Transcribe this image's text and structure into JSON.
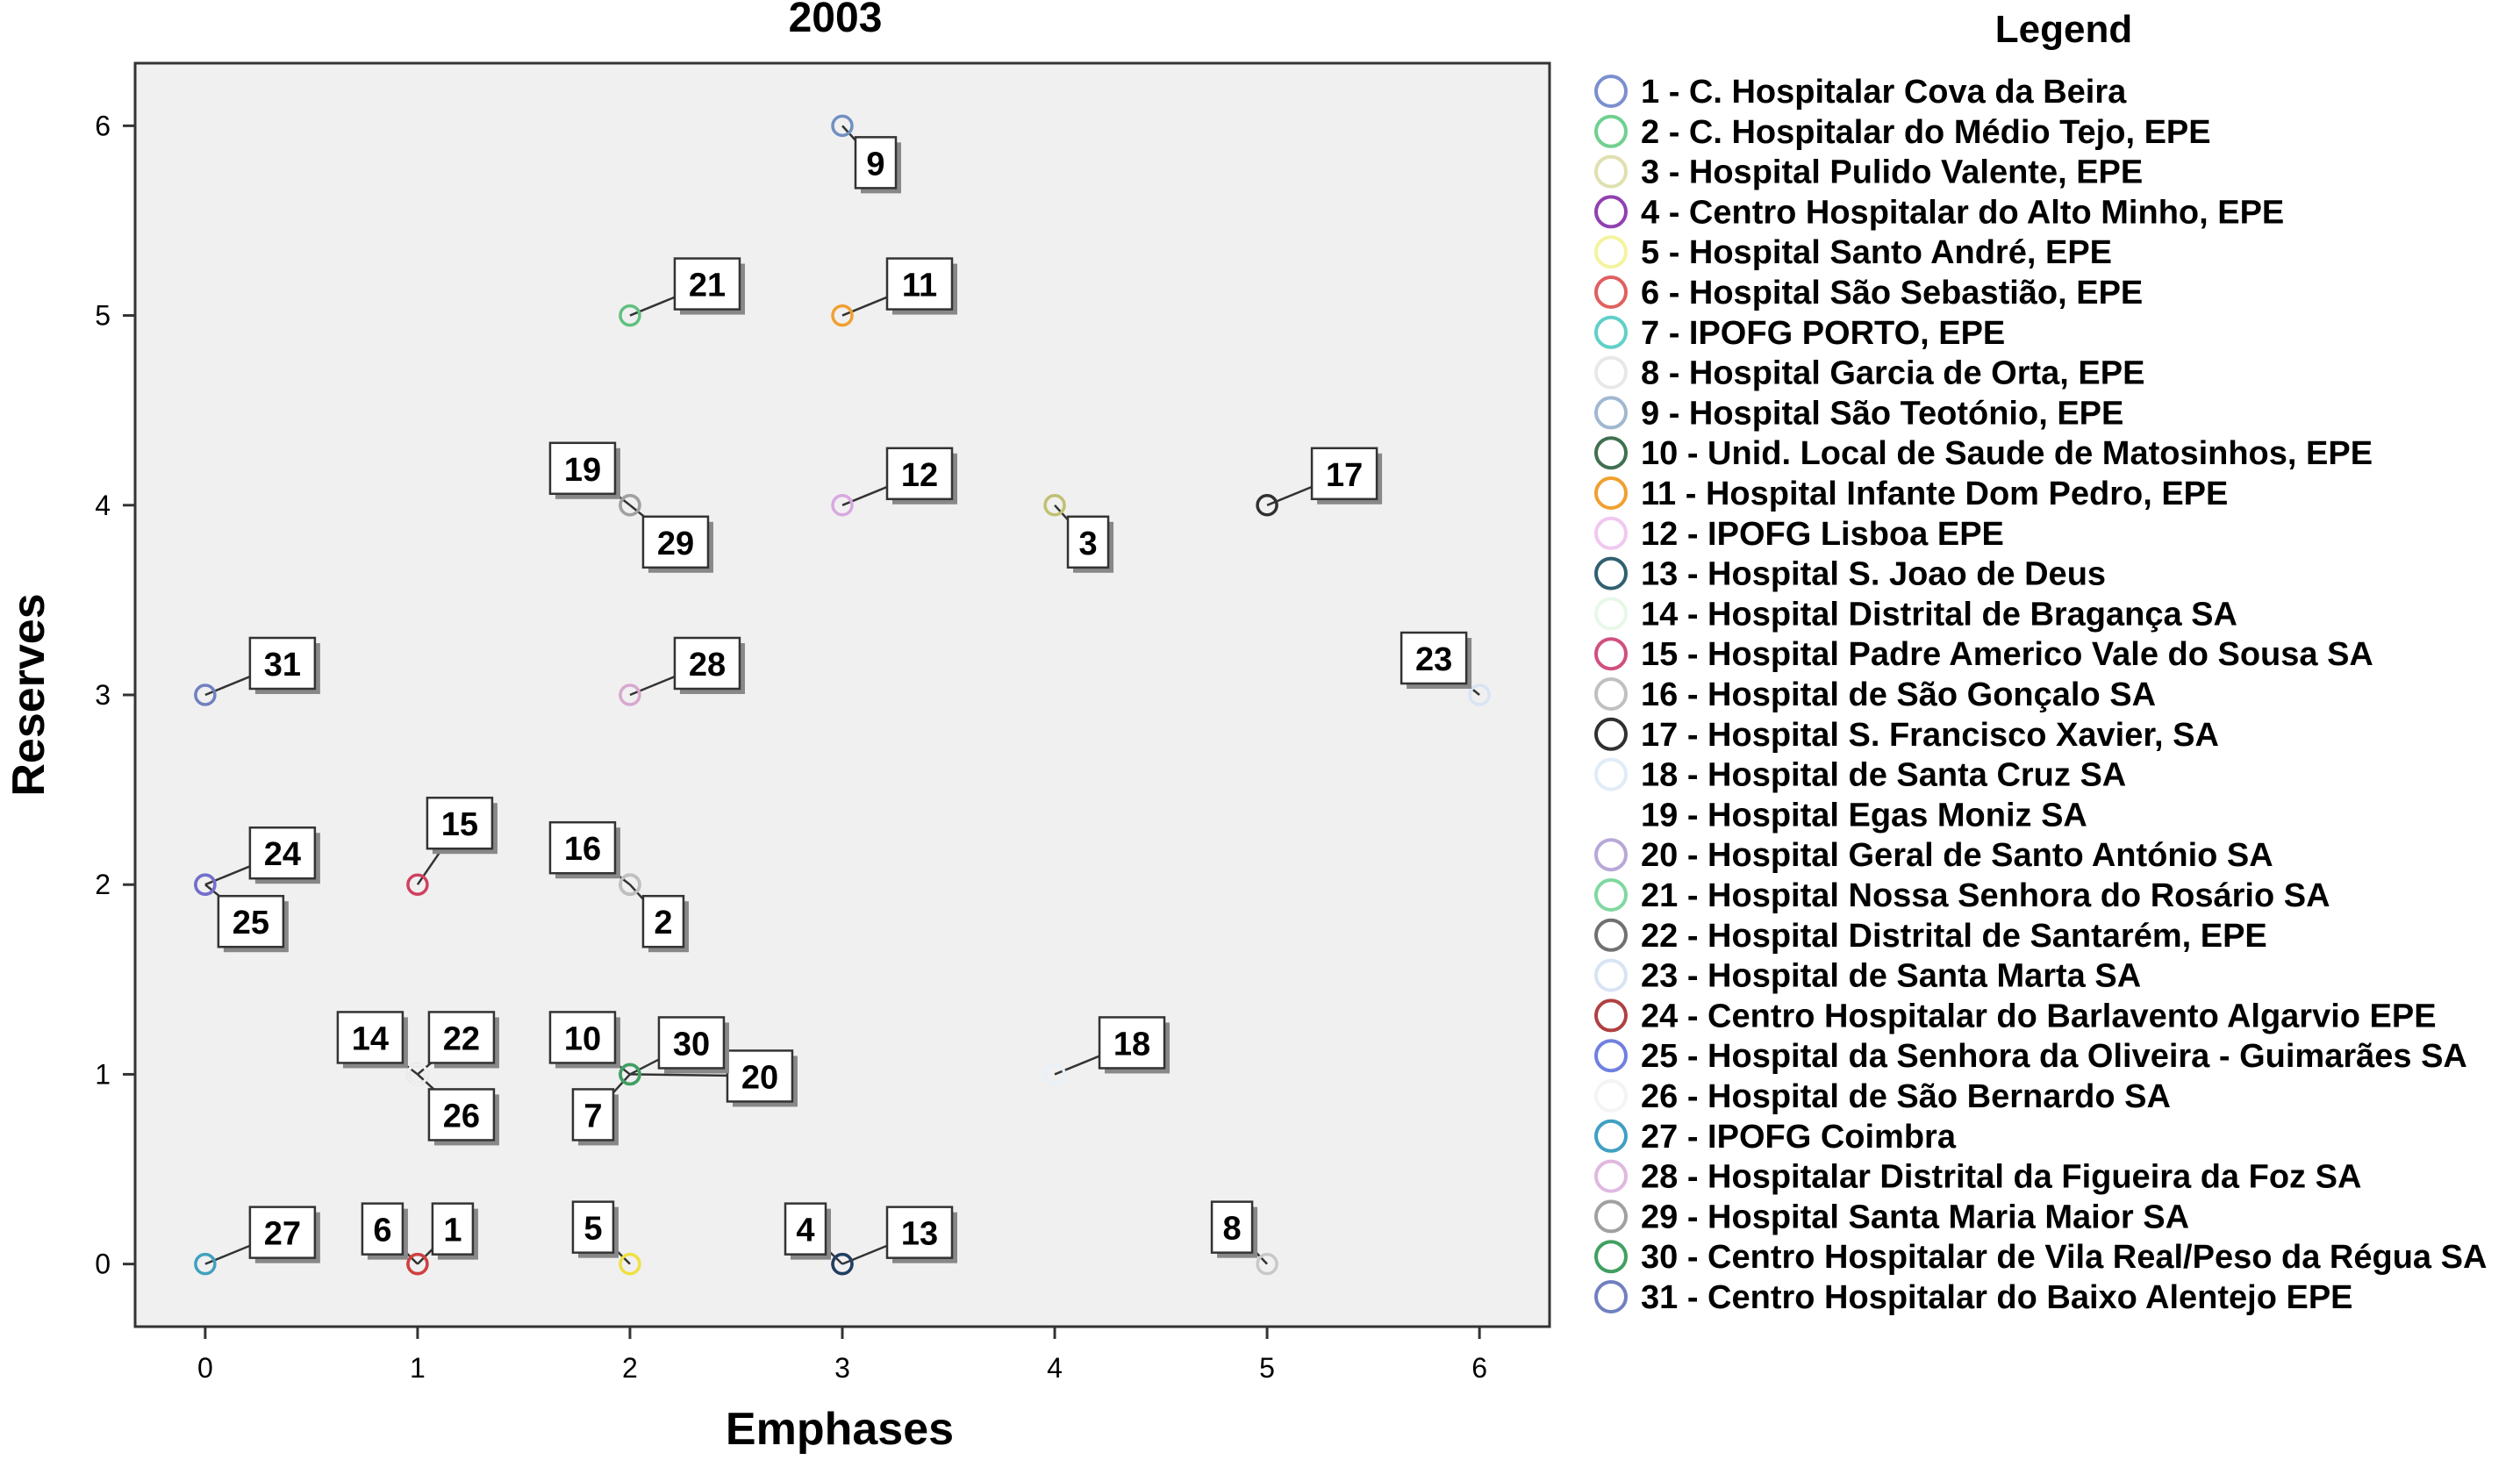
{
  "chart_data": {
    "type": "scatter",
    "title": "2003",
    "xlabel": "Emphases",
    "ylabel": "Reserves",
    "xlim": [
      -0.33,
      6.33
    ],
    "ylim": [
      -0.33,
      6.33
    ],
    "xticks": [
      0,
      1,
      2,
      3,
      4,
      5,
      6
    ],
    "yticks": [
      0,
      1,
      2,
      3,
      4,
      5,
      6
    ],
    "grid": false,
    "legend_title": "Legend",
    "legend_position": "right",
    "points": [
      {
        "id": "1",
        "x": 1,
        "y": 0,
        "color": "#e06060",
        "label": "1",
        "dx": 40,
        "dy": -40
      },
      {
        "id": "2",
        "x": 2,
        "y": 2,
        "color": "#707070",
        "label": "2",
        "dx": 38,
        "dy": 42
      },
      {
        "id": "3",
        "x": 4,
        "y": 4,
        "color": "#c0c070",
        "label": "3",
        "dx": 38,
        "dy": 42
      },
      {
        "id": "4",
        "x": 3,
        "y": 0,
        "color": "#8030a0",
        "label": "4",
        "dx": -42,
        "dy": -40
      },
      {
        "id": "5",
        "x": 2,
        "y": 0,
        "color": "#f0e040",
        "label": "5",
        "dx": -42,
        "dy": -42
      },
      {
        "id": "6",
        "x": 1,
        "y": 0,
        "color": "#d04040",
        "label": "6",
        "dx": -40,
        "dy": -40
      },
      {
        "id": "7",
        "x": 2,
        "y": 1,
        "color": "#40c0c0",
        "label": "7",
        "dx": -42,
        "dy": 46
      },
      {
        "id": "8",
        "x": 5,
        "y": 0,
        "color": "#c8c8c8",
        "label": "8",
        "dx": -40,
        "dy": -42
      },
      {
        "id": "9",
        "x": 3,
        "y": 6,
        "color": "#7090c0",
        "label": "9",
        "dx": 38,
        "dy": 42
      },
      {
        "id": "10",
        "x": 2,
        "y": 1,
        "color": "#207050",
        "label": "10",
        "dx": -54,
        "dy": -42
      },
      {
        "id": "11",
        "x": 3,
        "y": 5,
        "color": "#f0a030",
        "label": "11",
        "dx": 88,
        "dy": -36
      },
      {
        "id": "12",
        "x": 3,
        "y": 4,
        "color": "#d8a8e0",
        "label": "12",
        "dx": 88,
        "dy": -36
      },
      {
        "id": "13",
        "x": 3,
        "y": 0,
        "color": "#204060",
        "label": "13",
        "dx": 88,
        "dy": -36
      },
      {
        "id": "14",
        "x": 1,
        "y": 1,
        "color": "#e8f8e8",
        "label": "14",
        "dx": -54,
        "dy": -42
      },
      {
        "id": "15",
        "x": 1,
        "y": 2,
        "color": "#d04060",
        "label": "15",
        "dx": 48,
        "dy": -70
      },
      {
        "id": "16",
        "x": 2,
        "y": 2,
        "color": "#c0c0c0",
        "label": "16",
        "dx": -54,
        "dy": -42
      },
      {
        "id": "17",
        "x": 5,
        "y": 4,
        "color": "#303030",
        "label": "17",
        "dx": 88,
        "dy": -36
      },
      {
        "id": "18",
        "x": 4,
        "y": 1,
        "color": "#e8f0f8",
        "label": "18",
        "dx": 88,
        "dy": -36
      },
      {
        "id": "19",
        "x": 2,
        "y": 4,
        "color": "#b0b0b0",
        "label": "19",
        "dx": -54,
        "dy": -42
      },
      {
        "id": "20",
        "x": 2,
        "y": 1,
        "color": "#b8a8d8",
        "label": "20",
        "dx": 148,
        "dy": 2
      },
      {
        "id": "21",
        "x": 2,
        "y": 5,
        "color": "#60c080",
        "label": "21",
        "dx": 88,
        "dy": -36
      },
      {
        "id": "22",
        "x": 1,
        "y": 1,
        "color": "#707070",
        "label": "22",
        "dx": 50,
        "dy": -42
      },
      {
        "id": "23",
        "x": 6,
        "y": 3,
        "color": "#d8e4f4",
        "label": "23",
        "dx": -52,
        "dy": -42
      },
      {
        "id": "24",
        "x": 0,
        "y": 2,
        "color": "#b04040",
        "label": "24",
        "dx": 88,
        "dy": -36
      },
      {
        "id": "25",
        "x": 0,
        "y": 2,
        "color": "#7070d0",
        "label": "25",
        "dx": 52,
        "dy": 42
      },
      {
        "id": "26",
        "x": 1,
        "y": 1,
        "color": "#f0f0f0",
        "label": "26",
        "dx": 50,
        "dy": 46
      },
      {
        "id": "27",
        "x": 0,
        "y": 0,
        "color": "#40a0c0",
        "label": "27",
        "dx": 88,
        "dy": -36
      },
      {
        "id": "28",
        "x": 2,
        "y": 3,
        "color": "#d8a8d0",
        "label": "28",
        "dx": 88,
        "dy": -36
      },
      {
        "id": "29",
        "x": 2,
        "y": 4,
        "color": "#a0a0a0",
        "label": "29",
        "dx": 52,
        "dy": 42
      },
      {
        "id": "30",
        "x": 2,
        "y": 1,
        "color": "#40a060",
        "label": "30",
        "dx": 70,
        "dy": -36
      },
      {
        "id": "31",
        "x": 0,
        "y": 3,
        "color": "#7080c0",
        "label": "31",
        "dx": 88,
        "dy": -36
      }
    ],
    "legend": [
      {
        "name": "1 - C. Hospitalar Cova da Beira",
        "color": "#7b8fd0"
      },
      {
        "name": "2 - C. Hospitalar do Médio Tejo, EPE",
        "color": "#70d090"
      },
      {
        "name": "3 - Hospital Pulido Valente, EPE",
        "color": "#e0e0b0"
      },
      {
        "name": "4 - Centro Hospitalar do Alto Minho, EPE",
        "color": "#9040b0"
      },
      {
        "name": "5 - Hospital Santo André, EPE",
        "color": "#f4f4a0"
      },
      {
        "name": "6 - Hospital São Sebastião, EPE",
        "color": "#e06060"
      },
      {
        "name": "7 - IPOFG PORTO, EPE",
        "color": "#60d0c8"
      },
      {
        "name": "8 - Hospital Garcia  de Orta, EPE",
        "color": "#e8e8e8"
      },
      {
        "name": "9 - Hospital São Teotónio, EPE",
        "color": "#a0b8d0"
      },
      {
        "name": "10 - Unid. Local de Saude de Matosinhos, EPE",
        "color": "#407050"
      },
      {
        "name": "11 - Hospital Infante Dom Pedro, EPE",
        "color": "#f0a030"
      },
      {
        "name": "12 - IPOFG Lisboa EPE",
        "color": "#f0c8f0"
      },
      {
        "name": "13 - Hospital S. Joao de Deus",
        "color": "#306070"
      },
      {
        "name": "14 - Hospital Distrital de Bragança SA",
        "color": "#e8f8e8"
      },
      {
        "name": "15 - Hospital Padre Americo  Vale do Sousa SA",
        "color": "#d05080"
      },
      {
        "name": "16 - Hospital de São Gonçalo SA",
        "color": "#c0c0c0"
      },
      {
        "name": "17 - Hospital S. Francisco Xavier, SA",
        "color": "#303030"
      },
      {
        "name": "18 - Hospital de Santa Cruz SA",
        "color": "#e0ecf8"
      },
      {
        "name": "19 - Hospital Egas Moniz SA",
        "color": "#ffffff"
      },
      {
        "name": "20 - Hospital Geral de Santo António SA",
        "color": "#b8a8d8"
      },
      {
        "name": "21 - Hospital Nossa Senhora do Rosário SA",
        "color": "#80d8a0"
      },
      {
        "name": "22 - Hospital Distrital de Santarém, EPE",
        "color": "#707070"
      },
      {
        "name": "23 - Hospital de Santa Marta SA",
        "color": "#d8e4f4"
      },
      {
        "name": "24 - Centro Hospitalar do Barlavento Algarvio EPE",
        "color": "#b04040"
      },
      {
        "name": "25 - Hospital da Senhora da Oliveira - Guimarães SA",
        "color": "#7080e0"
      },
      {
        "name": "26 - Hospital de São Bernardo SA",
        "color": "#f4f4f4"
      },
      {
        "name": "27 - IPOFG Coimbra",
        "color": "#40a0c0"
      },
      {
        "name": "28 - Hospitalar Distrital da Figueira da Foz SA",
        "color": "#e0b8e0"
      },
      {
        "name": "29 - Hospital Santa Maria Maior SA",
        "color": "#a0a0a0"
      },
      {
        "name": "30 - Centro Hospitalar de Vila Real/Peso da Régua SA",
        "color": "#40a060"
      },
      {
        "name": "31 - Centro Hospitalar do Baixo Alentejo EPE",
        "color": "#7080c0"
      }
    ]
  }
}
